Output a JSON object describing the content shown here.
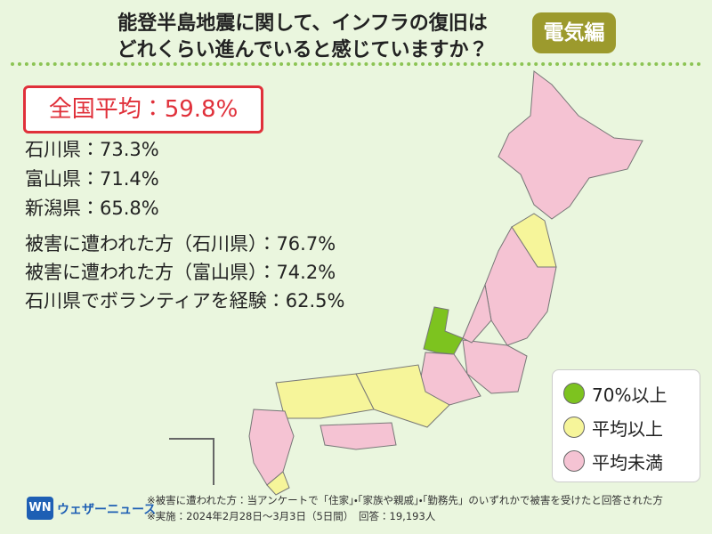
{
  "header": {
    "title": [
      "能登半島地震に関して、インフラの復旧は",
      "どれくらい進んでいると感じていますか？"
    ],
    "badge": "電気編"
  },
  "national_average": "全国平均：59.8%",
  "prefectures": [
    "石川県：73.3%",
    "富山県：71.4%",
    "新潟県：65.8%"
  ],
  "groups": [
    "被害に遭われた方（石川県）：76.7%",
    "被害に遭われた方（富山県）：74.2%",
    "石川県でボランティアを経験：62.5%"
  ],
  "legend": [
    {
      "label": "70%以上",
      "color": "#7dc31f"
    },
    {
      "label": "平均以上",
      "color": "#f6f59a"
    },
    {
      "label": "平均未満",
      "color": "#f5c3d3"
    }
  ],
  "footer": {
    "logo": "ウェザーニュース",
    "notes": [
      "※被害に遭われた方：当アンケートで「住家」・「家族や親戚」・「勤務先」のいずれかで被害を受けたと回答された方",
      "※実施：2024年2月28日〜3月3日（5日間）　回答：19,193人"
    ]
  }
}
